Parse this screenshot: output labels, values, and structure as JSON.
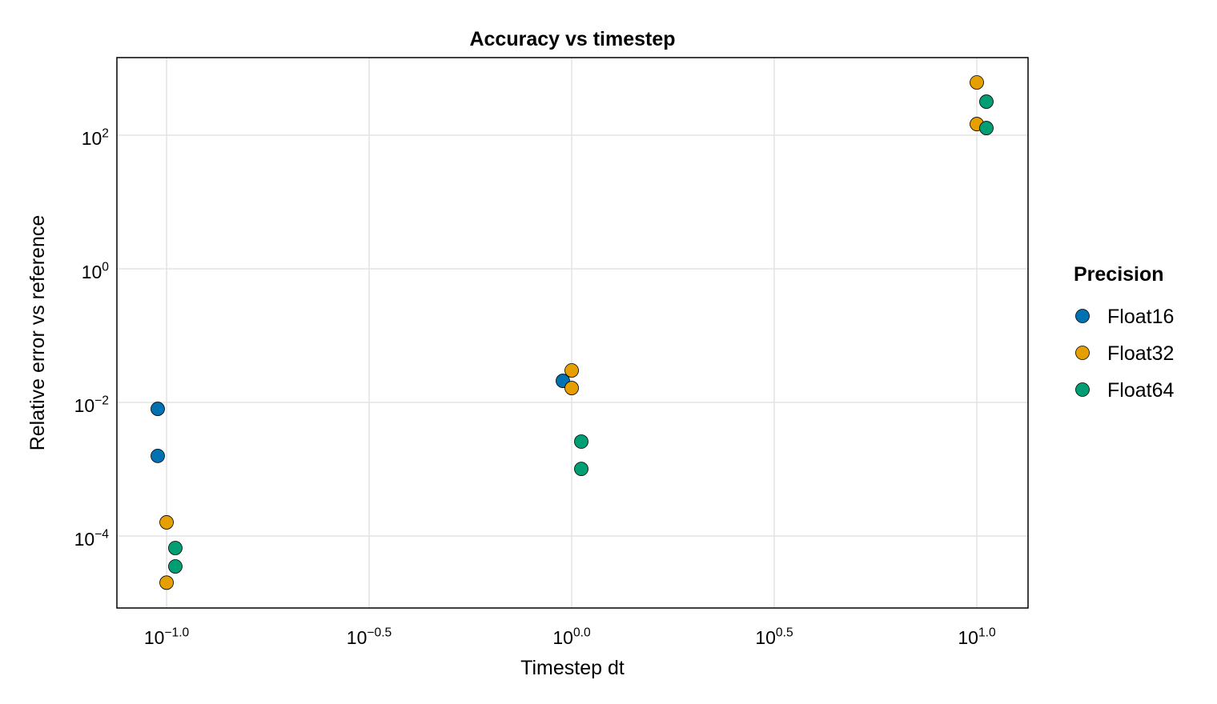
{
  "chart_data": {
    "type": "scatter",
    "title": "Accuracy vs timestep",
    "x_label": "Timestep dt",
    "y_label": "Relative error vs reference",
    "x_scale": "log",
    "y_scale": "log",
    "grid": true,
    "legend_title": "Precision",
    "legend_position": "right",
    "xlim": [
      0.0754,
      13.38
    ],
    "ylim": [
      8.35e-06,
      1452
    ],
    "xticks": [
      {
        "value": 0.1,
        "label": "10^−1.0"
      },
      {
        "value": 0.3162,
        "label": "10^−0.5"
      },
      {
        "value": 1,
        "label": "10^0.0"
      },
      {
        "value": 3.162,
        "label": "10^0.5"
      },
      {
        "value": 10,
        "label": "10^1.0"
      }
    ],
    "yticks": [
      {
        "value": 0.0001,
        "label": "10^−4"
      },
      {
        "value": 0.01,
        "label": "10^−2"
      },
      {
        "value": 1,
        "label": "10^0"
      },
      {
        "value": 100,
        "label": "10^2"
      }
    ],
    "series": [
      {
        "name": "Float16",
        "color": "#0072b2",
        "x": [
          0.0951,
          0.0951,
          0.951
        ],
        "values": [
          0.008,
          0.00158,
          0.021
        ]
      },
      {
        "name": "Float32",
        "color": "#e69f00",
        "x": [
          0.1,
          0.1,
          1,
          1,
          10,
          10
        ],
        "values": [
          0.00016,
          2e-05,
          0.0301,
          0.0164,
          617,
          147
        ]
      },
      {
        "name": "Float64",
        "color": "#009e73",
        "x": [
          0.1051,
          0.1051,
          1.056,
          1.056,
          10.56,
          10.56
        ],
        "values": [
          6.6e-05,
          3.5e-05,
          0.00259,
          0.00101,
          318,
          128
        ]
      }
    ]
  }
}
